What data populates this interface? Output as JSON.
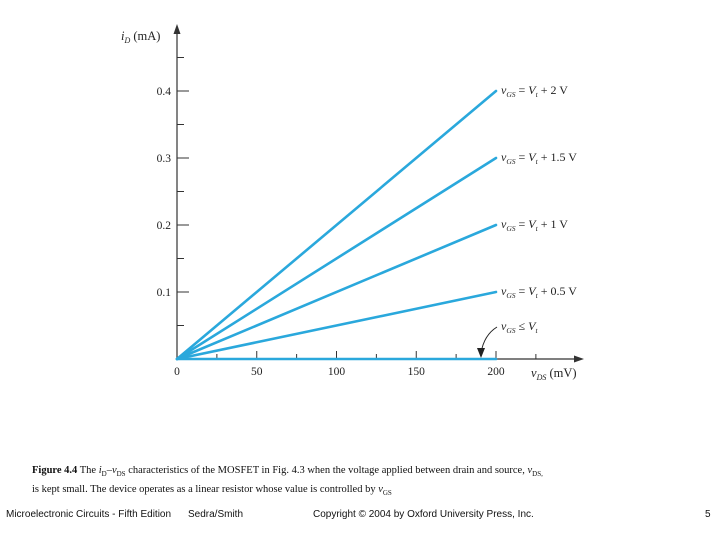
{
  "chart_data": {
    "type": "line",
    "title": "",
    "xlabel": "vDS (mV)",
    "ylabel": "iD (mA)",
    "xlim": [
      0,
      240
    ],
    "ylim": [
      0,
      0.5
    ],
    "x_ticks": [
      0,
      50,
      100,
      150,
      200
    ],
    "y_ticks": [
      0.1,
      0.2,
      0.3,
      0.4
    ],
    "x_tick_labels": [
      "0",
      "50",
      "100",
      "150",
      "200"
    ],
    "y_tick_labels": [
      "0.1",
      "0.2",
      "0.3",
      "0.4"
    ],
    "grid": false,
    "line_color": "#2aa8dc",
    "series": [
      {
        "name": "vGS = Vt + 2 V",
        "x": [
          0,
          200
        ],
        "y": [
          0,
          0.4
        ]
      },
      {
        "name": "vGS = Vt + 1.5 V",
        "x": [
          0,
          200
        ],
        "y": [
          0,
          0.3
        ]
      },
      {
        "name": "vGS = Vt + 1 V",
        "x": [
          0,
          200
        ],
        "y": [
          0,
          0.2
        ]
      },
      {
        "name": "vGS = Vt + 0.5 V",
        "x": [
          0,
          200
        ],
        "y": [
          0,
          0.1
        ]
      },
      {
        "name": "vGS ≤ Vt",
        "x": [
          0,
          200
        ],
        "y": [
          0,
          0
        ]
      }
    ]
  },
  "labels": {
    "ylabel_var": "i",
    "ylabel_sub": "D",
    "ylabel_unit": " (mA)",
    "xlabel_var": "v",
    "xlabel_sub": "DS",
    "xlabel_unit": " (mV)",
    "curves": [
      {
        "sub": "GS",
        "op": " = ",
        "vt": "V",
        "vt_sub": "t",
        "rest": " + 2 V"
      },
      {
        "sub": "GS",
        "op": " = ",
        "vt": "V",
        "vt_sub": "t",
        "rest": " + 1.5 V"
      },
      {
        "sub": "GS",
        "op": " = ",
        "vt": "V",
        "vt_sub": "t",
        "rest": " + 1 V"
      },
      {
        "sub": "GS",
        "op": " = ",
        "vt": "V",
        "vt_sub": "t",
        "rest": " + 0.5 V"
      },
      {
        "sub": "GS",
        "op": " ≤ ",
        "vt": "V",
        "vt_sub": "t",
        "rest": ""
      }
    ]
  },
  "caption": {
    "fig_label": "Figure 4.4",
    "part1": "The ",
    "id": "i",
    "id_sub": "D",
    "dash": "–",
    "vds": "v",
    "vds_sub": "DS",
    "part2": " characteristics of the MOSFET in Fig. 4.3 when the voltage applied between drain and source, ",
    "vds2": "v",
    "vds2_sub": "DS,",
    "line2": "is kept small. The device operates as a linear resistor whose value is controlled by ",
    "vgs": "v",
    "vgs_sub": "GS"
  },
  "footer": {
    "book": "Microelectronic Circuits - Fifth Edition",
    "authors": "Sedra/Smith",
    "copyright": "Copyright © 2004 by Oxford University Press, Inc.",
    "page": "5"
  }
}
